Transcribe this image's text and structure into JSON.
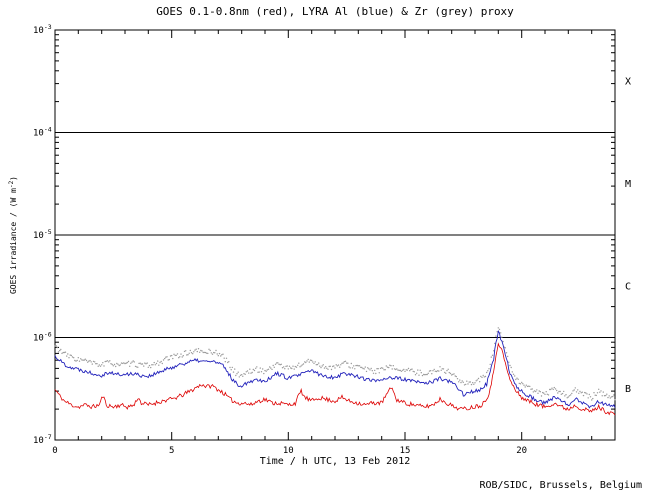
{
  "page": {
    "background": "#ffffff",
    "credit": "ROB/SIDC, Brussels, Belgium"
  },
  "chart_data": {
    "type": "line",
    "title": "GOES 0.1-0.8nm (red), LYRA Al (blue) & Zr (grey) proxy",
    "xlabel": "Time / h UTC, 13 Feb 2012",
    "ylabel": "GOES irradiance / (W m-2)",
    "ylabel_parts": {
      "pre": "GOES irradiance / (W m",
      "sup": "-2",
      "post": ")"
    },
    "x_range": [
      0,
      24
    ],
    "x_major_ticks": [
      0,
      5,
      10,
      15,
      20
    ],
    "x_minor_step": 1,
    "y_scale": "log",
    "y_range_exp": [
      -7,
      -3
    ],
    "y_tick_exps": [
      -7,
      -6,
      -5,
      -4,
      -3
    ],
    "hlines_exp": [
      -4,
      -5,
      -6
    ],
    "grid": false,
    "legend": "in title",
    "sample_dt": 0.05,
    "flare_classes": [
      {
        "label": "X",
        "band_exp": [
          -4,
          -3
        ]
      },
      {
        "label": "M",
        "band_exp": [
          -5,
          -4
        ]
      },
      {
        "label": "C",
        "band_exp": [
          -6,
          -5
        ]
      },
      {
        "label": "B",
        "band_exp": [
          -7,
          -6
        ]
      }
    ],
    "series": [
      {
        "id": "lyra-zr-grey",
        "name": "LYRA Zr proxy",
        "color": "#9a9a9a",
        "style": "dots",
        "width": 0.8,
        "scale": 1e-07,
        "noise": 0.06,
        "seed": 33,
        "points": [
          [
            0,
            8.2
          ],
          [
            0.2,
            7.5
          ],
          [
            0.4,
            6.9
          ],
          [
            0.7,
            6.4
          ],
          [
            1,
            6.1
          ],
          [
            1.3,
            5.9
          ],
          [
            1.6,
            5.6
          ],
          [
            2,
            5.4
          ],
          [
            2.3,
            5.7
          ],
          [
            2.6,
            5.5
          ],
          [
            3,
            5.4
          ],
          [
            3.3,
            5.6
          ],
          [
            3.6,
            5.4
          ],
          [
            4,
            5.3
          ],
          [
            4.3,
            5.5
          ],
          [
            4.6,
            5.9
          ],
          [
            5,
            6.4
          ],
          [
            5.4,
            6.8
          ],
          [
            5.8,
            7.2
          ],
          [
            6.1,
            7.4
          ],
          [
            6.4,
            7.2
          ],
          [
            6.7,
            7.3
          ],
          [
            7,
            7
          ],
          [
            7.2,
            6.6
          ],
          [
            7.4,
            5.7
          ],
          [
            7.6,
            4.9
          ],
          [
            7.8,
            4.4
          ],
          [
            8,
            4.3
          ],
          [
            8.3,
            4.6
          ],
          [
            8.6,
            4.9
          ],
          [
            9,
            4.7
          ],
          [
            9.3,
            5.1
          ],
          [
            9.5,
            5.6
          ],
          [
            9.7,
            5.3
          ],
          [
            10,
            5
          ],
          [
            10.3,
            5.2
          ],
          [
            10.6,
            5.5
          ],
          [
            11,
            6
          ],
          [
            11.2,
            5.6
          ],
          [
            11.5,
            5.2
          ],
          [
            12,
            5.1
          ],
          [
            12.4,
            5.6
          ],
          [
            12.7,
            5.3
          ],
          [
            13,
            5.2
          ],
          [
            13.3,
            4.9
          ],
          [
            13.6,
            4.7
          ],
          [
            14,
            4.8
          ],
          [
            14.3,
            5.1
          ],
          [
            14.6,
            5
          ],
          [
            15,
            4.8
          ],
          [
            15.4,
            4.6
          ],
          [
            15.8,
            4.5
          ],
          [
            16.2,
            4.6
          ],
          [
            16.5,
            5
          ],
          [
            16.8,
            4.7
          ],
          [
            17.1,
            4.3
          ],
          [
            17.5,
            3.5
          ],
          [
            17.8,
            3.6
          ],
          [
            18.2,
            3.9
          ],
          [
            18.5,
            4.3
          ],
          [
            18.8,
            7
          ],
          [
            19,
            12.5
          ],
          [
            19.15,
            10
          ],
          [
            19.3,
            7.5
          ],
          [
            19.5,
            5.2
          ],
          [
            19.75,
            4
          ],
          [
            20,
            3.5
          ],
          [
            20.3,
            3.2
          ],
          [
            20.7,
            2.9
          ],
          [
            21,
            2.8
          ],
          [
            21.4,
            3.1
          ],
          [
            21.7,
            2.9
          ],
          [
            22,
            2.7
          ],
          [
            22.3,
            3.1
          ],
          [
            22.6,
            2.8
          ],
          [
            23,
            2.6
          ],
          [
            23.3,
            3
          ],
          [
            23.6,
            2.7
          ],
          [
            24,
            2.6
          ]
        ]
      },
      {
        "id": "lyra-al-blue",
        "name": "LYRA Al proxy",
        "color": "#2222bb",
        "style": "solid",
        "width": 0.9,
        "scale": 1e-07,
        "noise": 0.045,
        "seed": 22,
        "points": [
          [
            0,
            6.6
          ],
          [
            0.2,
            6
          ],
          [
            0.4,
            5.5
          ],
          [
            0.7,
            5.1
          ],
          [
            1,
            4.9
          ],
          [
            1.3,
            4.7
          ],
          [
            1.6,
            4.5
          ],
          [
            2,
            4.3
          ],
          [
            2.3,
            4.6
          ],
          [
            2.6,
            4.4
          ],
          [
            3,
            4.3
          ],
          [
            3.3,
            4.5
          ],
          [
            3.6,
            4.3
          ],
          [
            4,
            4.2
          ],
          [
            4.3,
            4.4
          ],
          [
            4.6,
            4.7
          ],
          [
            5,
            5.1
          ],
          [
            5.4,
            5.5
          ],
          [
            5.8,
            5.8
          ],
          [
            6.1,
            6
          ],
          [
            6.4,
            5.8
          ],
          [
            6.7,
            5.9
          ],
          [
            7,
            5.6
          ],
          [
            7.2,
            5.3
          ],
          [
            7.4,
            4.6
          ],
          [
            7.6,
            3.9
          ],
          [
            7.8,
            3.5
          ],
          [
            8,
            3.4
          ],
          [
            8.3,
            3.7
          ],
          [
            8.6,
            3.9
          ],
          [
            9,
            3.8
          ],
          [
            9.3,
            4.1
          ],
          [
            9.5,
            4.5
          ],
          [
            9.7,
            4.3
          ],
          [
            10,
            4
          ],
          [
            10.3,
            4.2
          ],
          [
            10.6,
            4.4
          ],
          [
            11,
            4.8
          ],
          [
            11.2,
            4.5
          ],
          [
            11.5,
            4.2
          ],
          [
            12,
            4.1
          ],
          [
            12.4,
            4.5
          ],
          [
            12.7,
            4.3
          ],
          [
            13,
            4.2
          ],
          [
            13.3,
            3.9
          ],
          [
            13.6,
            3.8
          ],
          [
            14,
            3.9
          ],
          [
            14.3,
            4.1
          ],
          [
            14.6,
            4
          ],
          [
            15,
            3.9
          ],
          [
            15.4,
            3.7
          ],
          [
            15.8,
            3.6
          ],
          [
            16.2,
            3.7
          ],
          [
            16.5,
            4
          ],
          [
            16.8,
            3.8
          ],
          [
            17.1,
            3.5
          ],
          [
            17.5,
            2.8
          ],
          [
            17.8,
            2.9
          ],
          [
            18.2,
            3.1
          ],
          [
            18.5,
            3.5
          ],
          [
            18.8,
            6
          ],
          [
            19,
            11.5
          ],
          [
            19.15,
            9
          ],
          [
            19.3,
            6.5
          ],
          [
            19.5,
            4.5
          ],
          [
            19.75,
            3.4
          ],
          [
            20,
            3
          ],
          [
            20.3,
            2.7
          ],
          [
            20.7,
            2.4
          ],
          [
            21,
            2.3
          ],
          [
            21.4,
            2.6
          ],
          [
            21.7,
            2.4
          ],
          [
            22,
            2.2
          ],
          [
            22.3,
            2.6
          ],
          [
            22.6,
            2.3
          ],
          [
            23,
            2.1
          ],
          [
            23.3,
            2.4
          ],
          [
            23.6,
            2.2
          ],
          [
            24,
            2.1
          ]
        ]
      },
      {
        "id": "goes-red",
        "name": "GOES 0.1-0.8nm",
        "color": "#dd0000",
        "style": "solid",
        "width": 0.8,
        "scale": 1e-07,
        "noise": 0.05,
        "seed": 11,
        "points": [
          [
            0,
            3.1
          ],
          [
            0.2,
            2.7
          ],
          [
            0.4,
            2.4
          ],
          [
            0.7,
            2.2
          ],
          [
            1,
            2.1
          ],
          [
            1.3,
            2.2
          ],
          [
            1.6,
            2.1
          ],
          [
            1.9,
            2.2
          ],
          [
            2.05,
            2.7
          ],
          [
            2.2,
            2.2
          ],
          [
            2.5,
            2.1
          ],
          [
            2.8,
            2.2
          ],
          [
            3.1,
            2.1
          ],
          [
            3.4,
            2.2
          ],
          [
            3.55,
            2.6
          ],
          [
            3.7,
            2.3
          ],
          [
            4,
            2.2
          ],
          [
            4.3,
            2.3
          ],
          [
            4.6,
            2.4
          ],
          [
            5,
            2.5
          ],
          [
            5.4,
            2.7
          ],
          [
            5.8,
            3
          ],
          [
            6.1,
            3.3
          ],
          [
            6.3,
            3.5
          ],
          [
            6.5,
            3.3
          ],
          [
            6.7,
            3.4
          ],
          [
            7,
            3.1
          ],
          [
            7.2,
            2.9
          ],
          [
            7.5,
            2.5
          ],
          [
            7.8,
            2.3
          ],
          [
            8.1,
            2.3
          ],
          [
            8.4,
            2.2
          ],
          [
            8.7,
            2.4
          ],
          [
            9,
            2.5
          ],
          [
            9.3,
            2.3
          ],
          [
            9.6,
            2.3
          ],
          [
            10,
            2.2
          ],
          [
            10.3,
            2.3
          ],
          [
            10.55,
            3
          ],
          [
            10.7,
            2.6
          ],
          [
            11,
            2.4
          ],
          [
            11.3,
            2.6
          ],
          [
            11.6,
            2.5
          ],
          [
            12,
            2.4
          ],
          [
            12.3,
            2.6
          ],
          [
            12.6,
            2.4
          ],
          [
            13,
            2.3
          ],
          [
            13.3,
            2.2
          ],
          [
            13.6,
            2.3
          ],
          [
            14,
            2.3
          ],
          [
            14.45,
            3.3
          ],
          [
            14.6,
            2.5
          ],
          [
            15,
            2.3
          ],
          [
            15.4,
            2.2
          ],
          [
            15.8,
            2.1
          ],
          [
            16.2,
            2.2
          ],
          [
            16.5,
            2.5
          ],
          [
            16.8,
            2.3
          ],
          [
            17.1,
            2.1
          ],
          [
            17.5,
            2
          ],
          [
            17.9,
            2.1
          ],
          [
            18.3,
            2.2
          ],
          [
            18.6,
            2.8
          ],
          [
            18.8,
            4.5
          ],
          [
            19,
            9
          ],
          [
            19.15,
            7.5
          ],
          [
            19.3,
            5.5
          ],
          [
            19.5,
            3.8
          ],
          [
            19.75,
            3
          ],
          [
            20,
            2.6
          ],
          [
            20.3,
            2.4
          ],
          [
            20.7,
            2.2
          ],
          [
            21,
            2.1
          ],
          [
            21.4,
            2.3
          ],
          [
            21.7,
            2.1
          ],
          [
            22,
            2
          ],
          [
            22.3,
            2.2
          ],
          [
            22.6,
            2
          ],
          [
            23,
            1.9
          ],
          [
            23.3,
            2.1
          ],
          [
            23.6,
            1.9
          ],
          [
            24,
            1.8
          ]
        ]
      }
    ]
  }
}
